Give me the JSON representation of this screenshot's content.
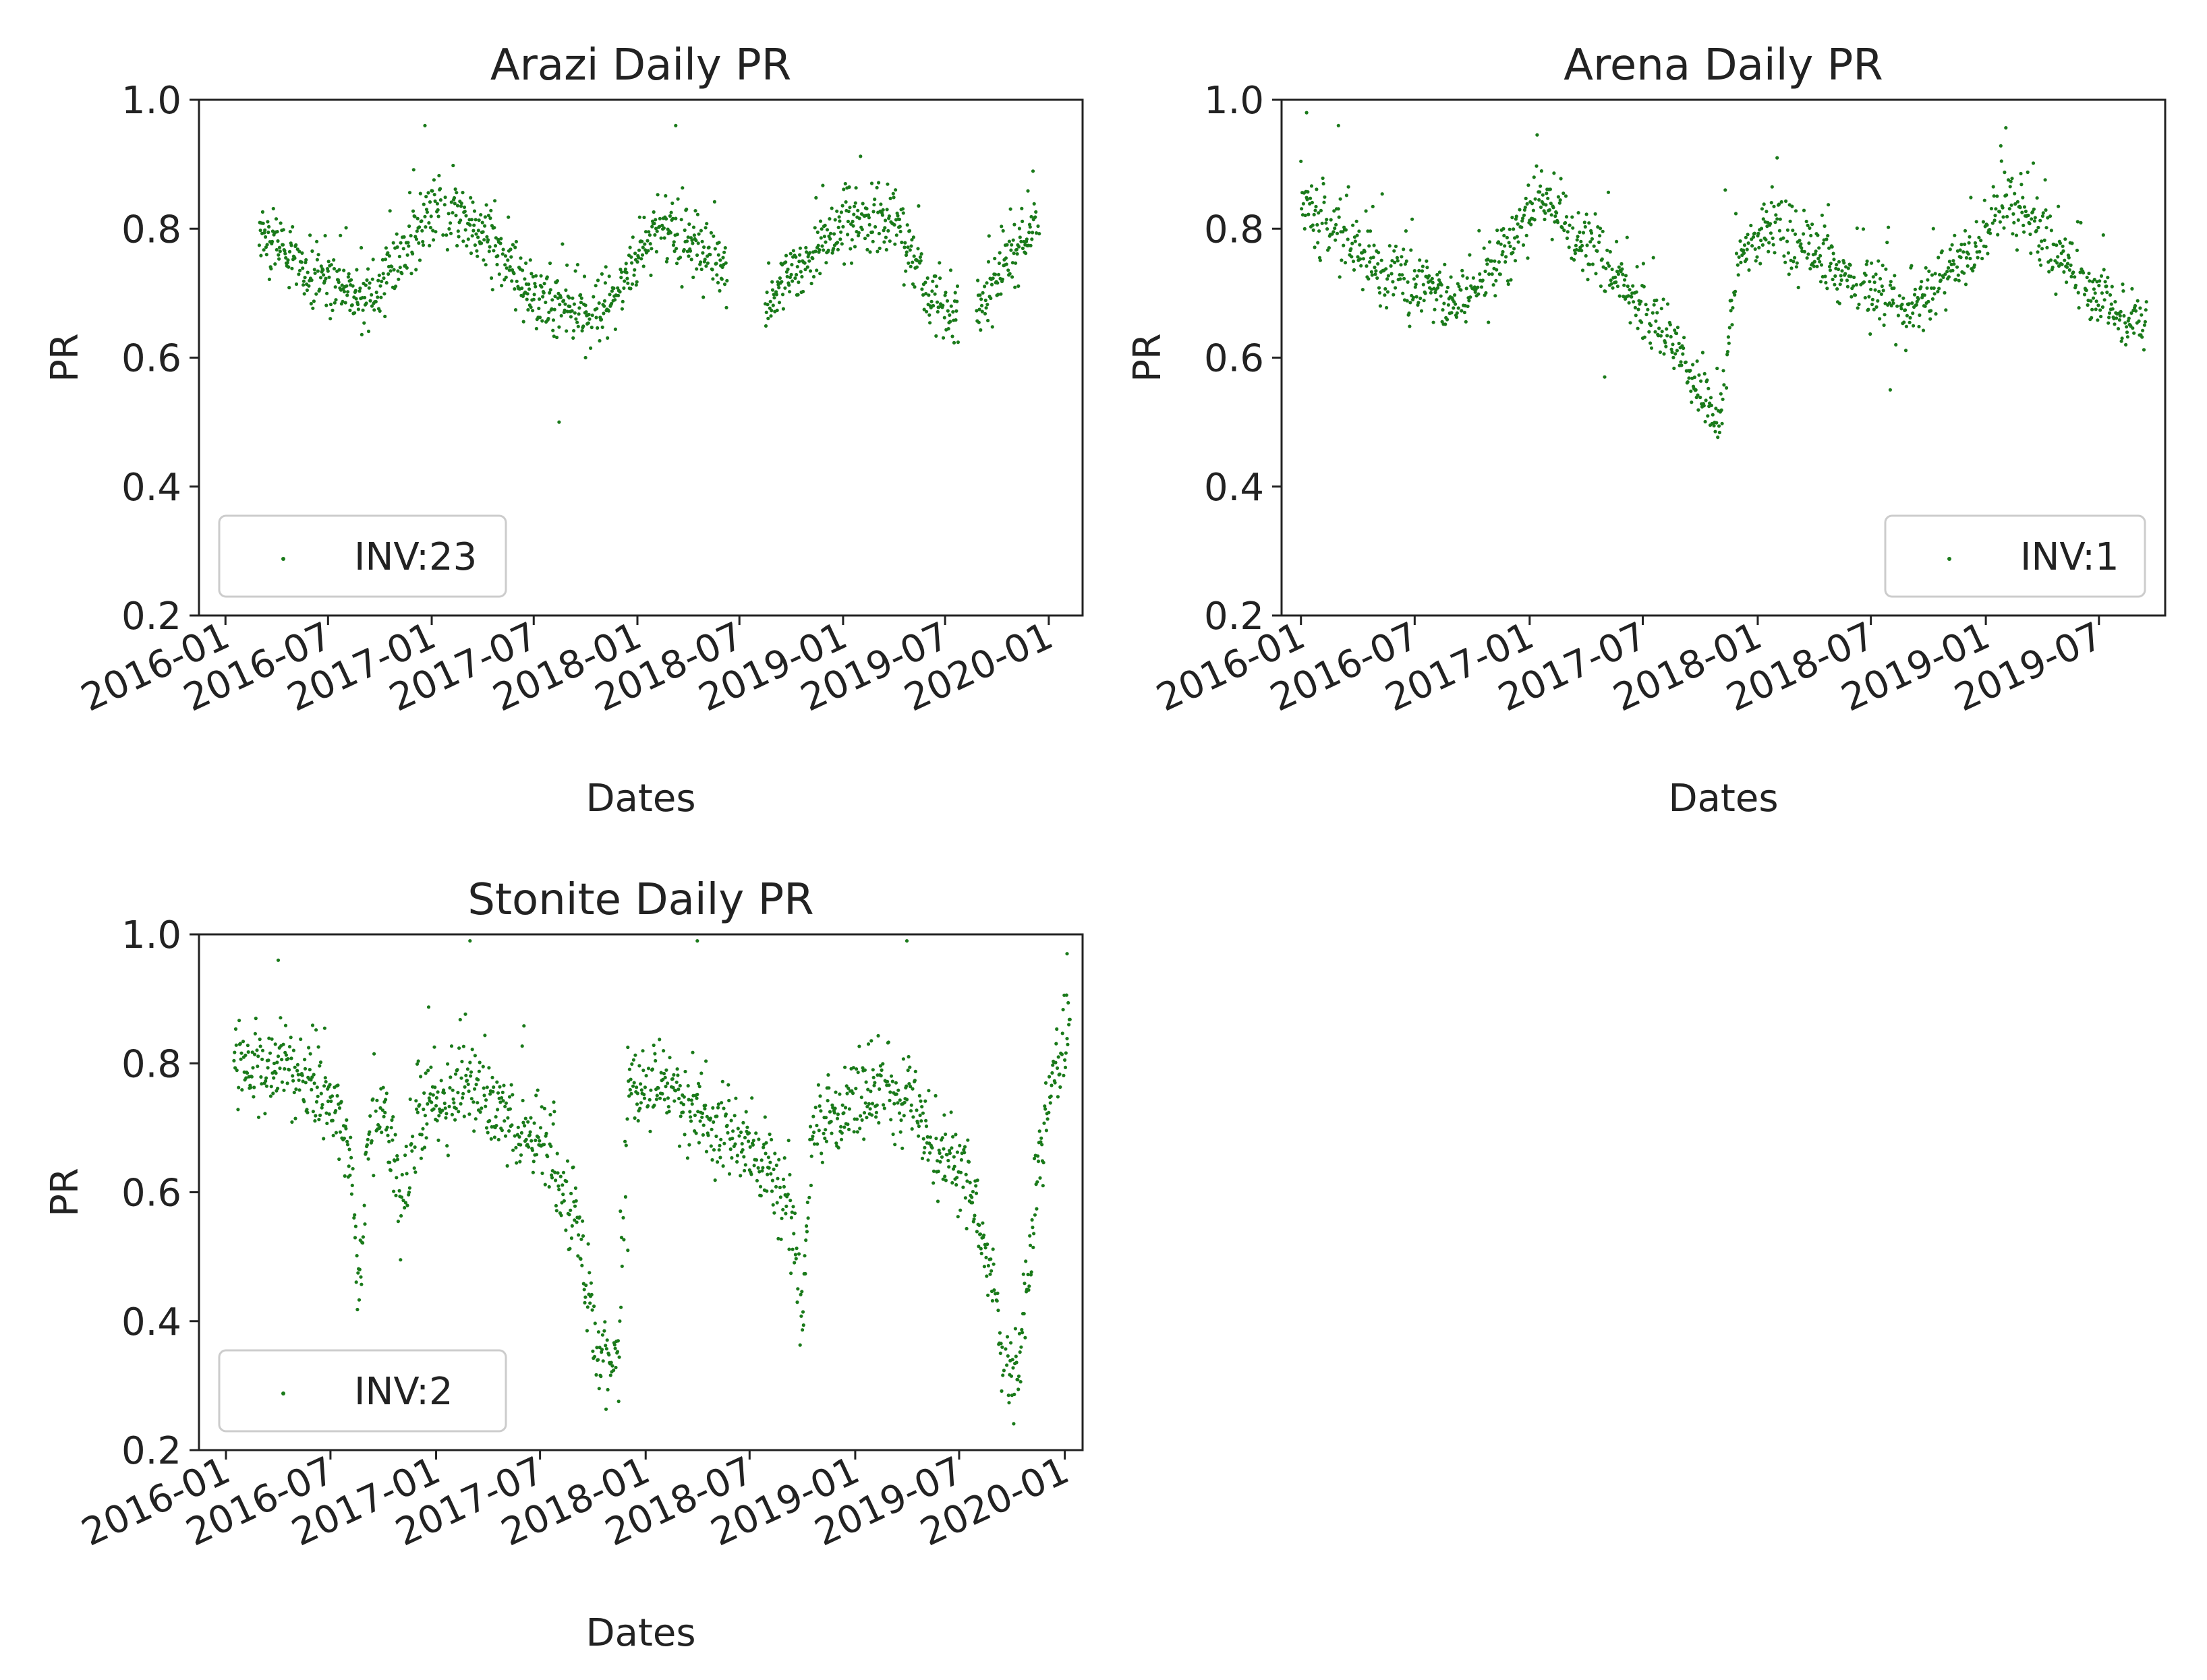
{
  "figure": {
    "point_color": "#1a7a1a",
    "axes_color": "#222222"
  },
  "chart_data": [
    {
      "type": "scatter",
      "title": "Arazi Daily PR",
      "xlabel": "Dates",
      "ylabel": "PR",
      "ylim": [
        0.2,
        1.0
      ],
      "xlim": [
        "2015-11-15",
        "2020-03-01"
      ],
      "yticks": [
        "0.2",
        "0.4",
        "0.6",
        "0.8",
        "1.0"
      ],
      "xticks": [
        "2016-01",
        "2016-07",
        "2017-01",
        "2017-07",
        "2018-01",
        "2018-07",
        "2019-01",
        "2019-07",
        "2020-01"
      ],
      "legend": {
        "label": "INV:23",
        "position": "lower-left"
      },
      "series": [
        {
          "name": "INV:23",
          "profile": [
            [
              "2016-03-01",
              0.8
            ],
            [
              "2016-06-01",
              0.73
            ],
            [
              "2016-09-15",
              0.69
            ],
            [
              "2016-11-01",
              0.75
            ],
            [
              "2017-01-15",
              0.84
            ],
            [
              "2017-04-15",
              0.78
            ],
            [
              "2017-07-01",
              0.7
            ],
            [
              "2017-10-01",
              0.66
            ],
            [
              "2017-11-15",
              0.68
            ],
            [
              "2018-02-01",
              0.81
            ],
            [
              "2018-05-01",
              0.76
            ],
            [
              "2018-07-01",
              0.7
            ],
            [
              "2018-08-20",
              0.69
            ],
            [
              "2019-01-01",
              0.81
            ],
            [
              "2019-04-01",
              0.81
            ],
            [
              "2019-06-01",
              0.7
            ],
            [
              "2019-07-15",
              0.66
            ],
            [
              "2019-09-15",
              0.69
            ],
            [
              "2019-12-15",
              0.82
            ]
          ],
          "gaps": [
            [
              "2018-06-10",
              "2018-08-15"
            ],
            [
              "2019-07-25",
              "2019-08-25"
            ]
          ],
          "outliers": [
            [
              "2017-08-15",
              0.5
            ],
            [
              "2017-10-01",
              0.6
            ],
            [
              "2016-12-20",
              0.96
            ],
            [
              "2018-03-10",
              0.96
            ]
          ],
          "spread": 0.045
        }
      ]
    },
    {
      "type": "scatter",
      "title": "Arena Daily PR",
      "xlabel": "Dates",
      "ylabel": "PR",
      "ylim": [
        0.2,
        1.0
      ],
      "xlim": [
        "2015-12-01",
        "2019-10-15"
      ],
      "yticks": [
        "0.2",
        "0.4",
        "0.6",
        "0.8",
        "1.0"
      ],
      "xticks": [
        "2016-01",
        "2016-07",
        "2017-01",
        "2017-07",
        "2018-01",
        "2018-07",
        "2019-01",
        "2019-07"
      ],
      "legend": {
        "label": "INV:1",
        "position": "lower-right"
      },
      "series": [
        {
          "name": "INV:1",
          "profile": [
            [
              "2016-01-01",
              0.84
            ],
            [
              "2016-05-01",
              0.74
            ],
            [
              "2016-09-15",
              0.68
            ],
            [
              "2016-12-01",
              0.77
            ],
            [
              "2017-01-15",
              0.86
            ],
            [
              "2017-04-01",
              0.78
            ],
            [
              "2017-07-01",
              0.68
            ],
            [
              "2017-09-01",
              0.6
            ],
            [
              "2017-11-01",
              0.5
            ],
            [
              "2017-12-01",
              0.76
            ],
            [
              "2018-02-01",
              0.81
            ],
            [
              "2018-05-01",
              0.74
            ],
            [
              "2018-09-01",
              0.67
            ],
            [
              "2018-12-01",
              0.76
            ],
            [
              "2019-02-01",
              0.85
            ],
            [
              "2019-05-01",
              0.76
            ],
            [
              "2019-07-01",
              0.69
            ],
            [
              "2019-09-15",
              0.65
            ]
          ],
          "gaps": [],
          "outliers": [
            [
              "2016-01-10",
              0.98
            ],
            [
              "2016-03-01",
              0.96
            ],
            [
              "2017-05-01",
              0.57
            ],
            [
              "2018-02-01",
              0.91
            ],
            [
              "2018-08-01",
              0.55
            ],
            [
              "2017-11-10",
              0.86
            ]
          ],
          "spread": 0.045
        }
      ]
    },
    {
      "type": "scatter",
      "title": "Stonite Daily PR",
      "xlabel": "Dates",
      "ylabel": "PR",
      "ylim": [
        0.2,
        1.0
      ],
      "xlim": [
        "2015-11-15",
        "2020-02-01"
      ],
      "yticks": [
        "0.2",
        "0.4",
        "0.6",
        "0.8",
        "1.0"
      ],
      "xticks": [
        "2016-01",
        "2016-07",
        "2017-01",
        "2017-07",
        "2018-01",
        "2018-07",
        "2019-01",
        "2019-07",
        "2020-01"
      ],
      "legend": {
        "label": "INV:2",
        "position": "lower-left"
      },
      "series": [
        {
          "name": "INV:2",
          "profile": [
            [
              "2016-01-15",
              0.81
            ],
            [
              "2016-06-15",
              0.77
            ],
            [
              "2016-08-01",
              0.67
            ],
            [
              "2016-08-20",
              0.44
            ],
            [
              "2016-09-05",
              0.7
            ],
            [
              "2016-10-01",
              0.73
            ],
            [
              "2016-11-01",
              0.58
            ],
            [
              "2016-12-01",
              0.72
            ],
            [
              "2017-03-01",
              0.77
            ],
            [
              "2017-05-01",
              0.72
            ],
            [
              "2017-07-15",
              0.65
            ],
            [
              "2017-09-01",
              0.55
            ],
            [
              "2017-10-15",
              0.34
            ],
            [
              "2017-11-15",
              0.34
            ],
            [
              "2017-12-01",
              0.78
            ],
            [
              "2018-04-01",
              0.73
            ],
            [
              "2018-08-01",
              0.64
            ],
            [
              "2018-09-15",
              0.55
            ],
            [
              "2018-10-01",
              0.4
            ],
            [
              "2018-10-15",
              0.68
            ],
            [
              "2019-01-15",
              0.75
            ],
            [
              "2019-04-01",
              0.75
            ],
            [
              "2019-06-01",
              0.66
            ],
            [
              "2019-07-15",
              0.62
            ],
            [
              "2019-08-20",
              0.5
            ],
            [
              "2019-09-15",
              0.33
            ],
            [
              "2019-10-15",
              0.32
            ],
            [
              "2019-11-15",
              0.64
            ],
            [
              "2019-12-15",
              0.78
            ],
            [
              "2020-01-10",
              0.84
            ]
          ],
          "gaps": [],
          "outliers": [
            [
              "2016-04-01",
              0.96
            ],
            [
              "2017-03-01",
              0.99
            ],
            [
              "2018-04-01",
              0.99
            ],
            [
              "2019-04-01",
              0.99
            ],
            [
              "2017-12-01",
              0.51
            ],
            [
              "2020-01-05",
              0.97
            ]
          ],
          "spread": 0.06
        }
      ]
    }
  ]
}
